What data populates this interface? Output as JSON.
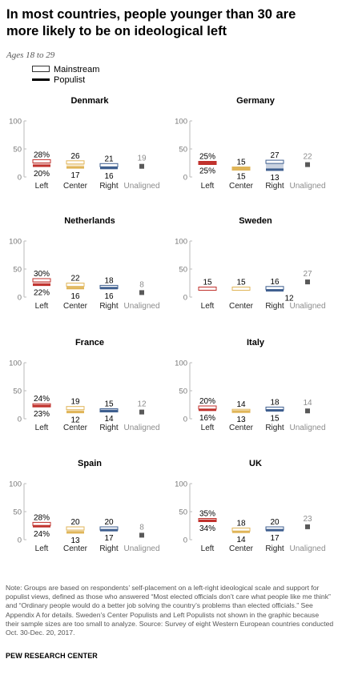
{
  "title": "In most countries, people younger than 30 are more likely to be on ideological left",
  "subtitle": "Ages 18 to 29",
  "legend": {
    "mainstream": "Mainstream",
    "populist": "Populist"
  },
  "colors": {
    "left": "#c0322d",
    "center": "#e0b558",
    "right": "#3f5f8f",
    "unaligned": "#595959",
    "unaligned_text": "#8c8c8c",
    "axis": "#bbbbbb"
  },
  "chart_data": [
    {
      "type": "bar",
      "title": "Denmark",
      "categories": [
        "Left",
        "Center",
        "Right",
        "Unaligned"
      ],
      "ylim": [
        0,
        100
      ],
      "yticks": [
        0,
        50,
        100
      ],
      "mainstream": [
        28,
        26,
        21,
        null
      ],
      "populist": [
        20,
        17,
        16,
        null
      ],
      "unaligned": 19
    },
    {
      "type": "bar",
      "title": "Germany",
      "categories": [
        "Left",
        "Center",
        "Right",
        "Unaligned"
      ],
      "ylim": [
        0,
        100
      ],
      "yticks": [
        0,
        50,
        100
      ],
      "mainstream": [
        25,
        15,
        27,
        null
      ],
      "populist": [
        25,
        15,
        13,
        null
      ],
      "unaligned": 22
    },
    {
      "type": "bar",
      "title": "Netherlands",
      "categories": [
        "Left",
        "Center",
        "Right",
        "Unaligned"
      ],
      "ylim": [
        0,
        100
      ],
      "yticks": [
        0,
        50,
        100
      ],
      "mainstream": [
        30,
        22,
        18,
        null
      ],
      "populist": [
        22,
        16,
        16,
        null
      ],
      "unaligned": 8
    },
    {
      "type": "bar",
      "title": "Sweden",
      "categories": [
        "Left",
        "Center",
        "Right",
        "Unaligned"
      ],
      "ylim": [
        0,
        100
      ],
      "yticks": [
        0,
        50,
        100
      ],
      "mainstream": [
        15,
        15,
        16,
        null
      ],
      "populist": [
        null,
        null,
        12,
        null
      ],
      "unaligned": 27
    },
    {
      "type": "bar",
      "title": "France",
      "categories": [
        "Left",
        "Center",
        "Right",
        "Unaligned"
      ],
      "ylim": [
        0,
        100
      ],
      "yticks": [
        0,
        50,
        100
      ],
      "mainstream": [
        24,
        19,
        15,
        null
      ],
      "populist": [
        23,
        12,
        14,
        null
      ],
      "unaligned": 12
    },
    {
      "type": "bar",
      "title": "Italy",
      "categories": [
        "Left",
        "Center",
        "Right",
        "Unaligned"
      ],
      "ylim": [
        0,
        100
      ],
      "yticks": [
        0,
        50,
        100
      ],
      "mainstream": [
        20,
        14,
        18,
        null
      ],
      "populist": [
        16,
        13,
        15,
        null
      ],
      "unaligned": 14
    },
    {
      "type": "bar",
      "title": "Spain",
      "categories": [
        "Left",
        "Center",
        "Right",
        "Unaligned"
      ],
      "ylim": [
        0,
        100
      ],
      "yticks": [
        0,
        50,
        100
      ],
      "mainstream": [
        28,
        20,
        20,
        null
      ],
      "populist": [
        24,
        13,
        17,
        null
      ],
      "unaligned": 8
    },
    {
      "type": "bar",
      "title": "UK",
      "categories": [
        "Left",
        "Center",
        "Right",
        "Unaligned"
      ],
      "ylim": [
        0,
        100
      ],
      "yticks": [
        0,
        50,
        100
      ],
      "mainstream": [
        35,
        18,
        20,
        null
      ],
      "populist": [
        34,
        14,
        17,
        null
      ],
      "unaligned": 23
    }
  ],
  "note": "Note: Groups are based on respondents’ self-placement on a left-right ideological scale and support for populist views, defined as those who answered “Most elected officials don’t care what people like me think” and “Ordinary people would do a better job solving the country’s problems than elected officials.” See Appendix A for details. Sweden’s Center Populists and Left Populists not shown in the graphic because their sample sizes are too small to analyze. Source: Survey of eight Western European countries conducted Oct. 30-Dec. 20, 2017.",
  "brand": "PEW RESEARCH CENTER"
}
